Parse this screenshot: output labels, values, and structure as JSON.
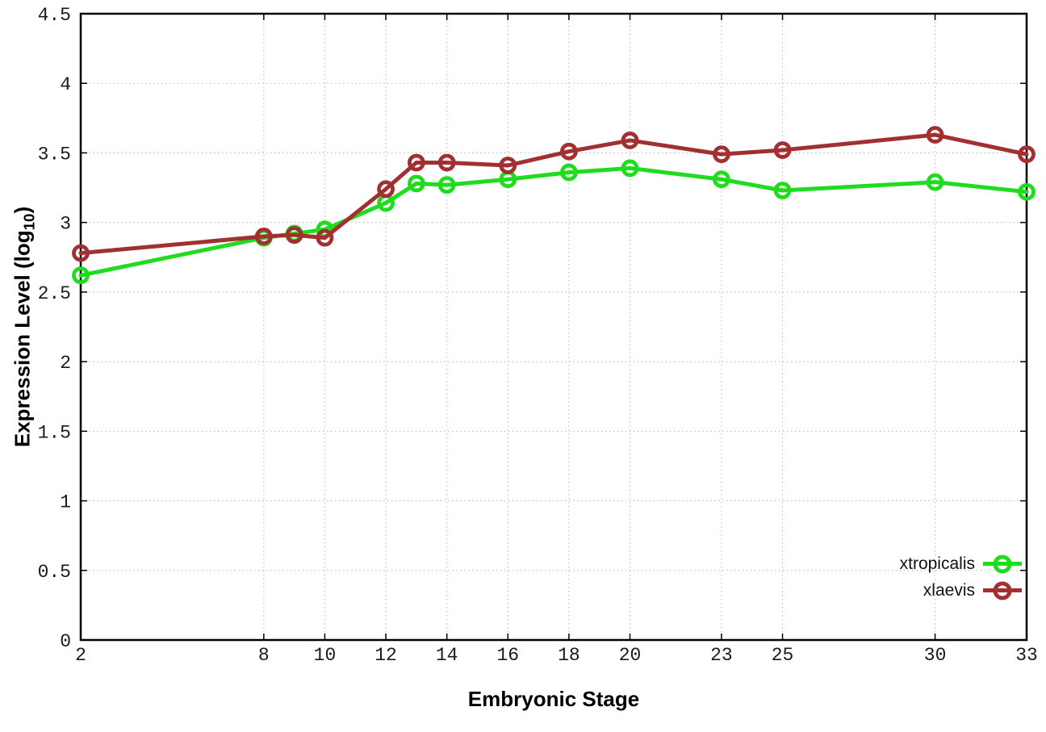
{
  "chart_data": {
    "type": "line",
    "title": "",
    "xlabel": "Embryonic Stage",
    "ylabel_text": "Expression Level (log10)",
    "ylabel": {
      "prefix": "Expression Level (log",
      "subscript": "10",
      "suffix": ")"
    },
    "xlim": [
      2,
      33
    ],
    "ylim": [
      0,
      4.5
    ],
    "xticks": [
      2,
      8,
      10,
      12,
      14,
      16,
      18,
      20,
      23,
      25,
      30,
      33
    ],
    "yticks": [
      0,
      0.5,
      1,
      1.5,
      2,
      2.5,
      3,
      3.5,
      4,
      4.5
    ],
    "ytick_labels": [
      "0",
      "0.5",
      "1",
      "1.5",
      "2",
      "2.5",
      "3",
      "3.5",
      "4",
      "4.5"
    ],
    "grid": true,
    "legend_position": "bottom-right",
    "x": [
      2,
      8,
      9,
      10,
      12,
      13,
      14,
      16,
      18,
      20,
      23,
      25,
      30,
      33
    ],
    "series": [
      {
        "name": "xtropicalis",
        "color": "#1fdc1f",
        "values": [
          2.62,
          2.89,
          2.92,
          2.95,
          3.14,
          3.28,
          3.27,
          3.31,
          3.36,
          3.39,
          3.31,
          3.23,
          3.29,
          3.22
        ]
      },
      {
        "name": "xlaevis",
        "color": "#a33030",
        "values": [
          2.78,
          2.9,
          2.91,
          2.89,
          3.24,
          3.43,
          3.43,
          3.41,
          3.51,
          3.59,
          3.49,
          3.52,
          3.63,
          3.49
        ]
      }
    ],
    "colors": {
      "grid": "#b8b8b8",
      "border": "#000000",
      "tick_label": "#1a1a1a"
    }
  }
}
